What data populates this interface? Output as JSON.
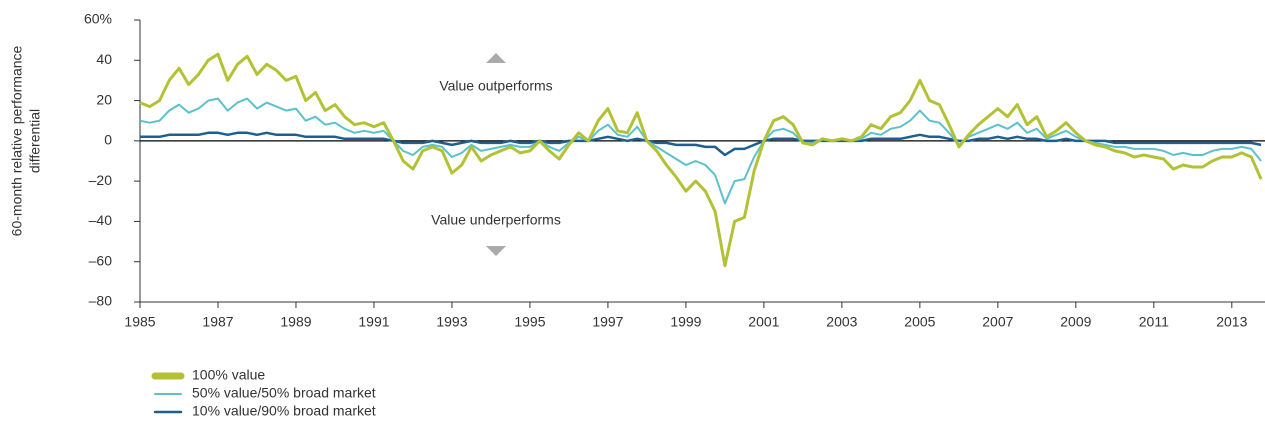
{
  "chart_data": {
    "type": "line",
    "ylabel": [
      "60-month relative performance",
      "differential"
    ],
    "annotations": [
      "Value outperforms",
      "Value underperforms"
    ],
    "xlim": [
      1985,
      2013.8
    ],
    "xticks": [
      1985,
      1987,
      1989,
      1991,
      1993,
      1995,
      1997,
      1999,
      2001,
      2003,
      2005,
      2007,
      2009,
      2011,
      2013
    ],
    "ylim": [
      -80,
      60
    ],
    "yticks": [
      {
        "value": -80,
        "label": "–80"
      },
      {
        "value": -60,
        "label": "–60"
      },
      {
        "value": -40,
        "label": "–40"
      },
      {
        "value": -20,
        "label": "–20"
      },
      0,
      20,
      40,
      {
        "value": 60,
        "label": "60%"
      }
    ],
    "zero_line": true,
    "x": [
      1985,
      1985.25,
      1985.5,
      1985.75,
      1986,
      1986.25,
      1986.5,
      1986.75,
      1987,
      1987.25,
      1987.5,
      1987.75,
      1988,
      1988.25,
      1988.5,
      1988.75,
      1989,
      1989.25,
      1989.5,
      1989.75,
      1990,
      1990.25,
      1990.5,
      1990.75,
      1991,
      1991.25,
      1991.5,
      1991.75,
      1992,
      1992.25,
      1992.5,
      1992.75,
      1993,
      1993.25,
      1993.5,
      1993.75,
      1994,
      1994.25,
      1994.5,
      1994.75,
      1995,
      1995.25,
      1995.5,
      1995.75,
      1996,
      1996.25,
      1996.5,
      1996.75,
      1997,
      1997.25,
      1997.5,
      1997.75,
      1998,
      1998.25,
      1998.5,
      1998.75,
      1999,
      1999.25,
      1999.5,
      1999.75,
      2000,
      2000.25,
      2000.5,
      2000.75,
      2001,
      2001.25,
      2001.5,
      2001.75,
      2002,
      2002.25,
      2002.5,
      2002.75,
      2003,
      2003.25,
      2003.5,
      2003.75,
      2004,
      2004.25,
      2004.5,
      2004.75,
      2005,
      2005.25,
      2005.5,
      2005.75,
      2006,
      2006.25,
      2006.5,
      2006.75,
      2007,
      2007.25,
      2007.5,
      2007.75,
      2008,
      2008.25,
      2008.5,
      2008.75,
      2009,
      2009.25,
      2009.5,
      2009.75,
      2010,
      2010.25,
      2010.5,
      2010.75,
      2011,
      2011.25,
      2011.5,
      2011.75,
      2012,
      2012.25,
      2012.5,
      2012.75,
      2013,
      2013.25,
      2013.5,
      2013.75
    ],
    "series": [
      {
        "name": "100% value",
        "color": "#b3c234",
        "width": 3,
        "legend_width": 7,
        "values": [
          19,
          17,
          20,
          30,
          36,
          28,
          33,
          40,
          43,
          30,
          38,
          42,
          33,
          38,
          35,
          30,
          32,
          20,
          24,
          15,
          18,
          12,
          8,
          9,
          7,
          9,
          0,
          -10,
          -14,
          -5,
          -3,
          -5,
          -16,
          -12,
          -3,
          -10,
          -7,
          -5,
          -3,
          -6,
          -5,
          0,
          -5,
          -9,
          -2,
          4,
          0,
          10,
          16,
          5,
          4,
          14,
          0,
          -5,
          -12,
          -18,
          -25,
          -20,
          -25,
          -35,
          -62,
          -40,
          -38,
          -15,
          0,
          10,
          12,
          8,
          -1,
          -2,
          1,
          0,
          1,
          0,
          2,
          8,
          6,
          12,
          14,
          20,
          30,
          20,
          18,
          8,
          -3,
          3,
          8,
          12,
          16,
          12,
          18,
          8,
          12,
          2,
          5,
          9,
          4,
          0,
          -2,
          -3,
          -5,
          -6,
          -8,
          -7,
          -8,
          -9,
          -14,
          -12,
          -13,
          -13,
          -10,
          -8,
          -8,
          -6,
          -8,
          -19
        ]
      },
      {
        "name": "50% value/50% broad market",
        "color": "#5bc2cb",
        "width": 2,
        "legend_width": 2,
        "values": [
          10,
          9,
          10,
          15,
          18,
          14,
          16,
          20,
          21,
          15,
          19,
          21,
          16,
          19,
          17,
          15,
          16,
          10,
          12,
          8,
          9,
          6,
          4,
          5,
          4,
          5,
          0,
          -5,
          -7,
          -3,
          -2,
          -3,
          -8,
          -6,
          -2,
          -5,
          -4,
          -3,
          -2,
          -3,
          -3,
          0,
          -3,
          -5,
          -1,
          2,
          0,
          5,
          8,
          3,
          2,
          7,
          0,
          -3,
          -6,
          -9,
          -12,
          -10,
          -12,
          -17,
          -31,
          -20,
          -19,
          -8,
          0,
          5,
          6,
          4,
          -1,
          -1,
          1,
          0,
          1,
          0,
          1,
          4,
          3,
          6,
          7,
          10,
          15,
          10,
          9,
          4,
          -2,
          2,
          4,
          6,
          8,
          6,
          9,
          4,
          6,
          1,
          3,
          5,
          2,
          0,
          -1,
          -2,
          -3,
          -3,
          -4,
          -4,
          -4,
          -5,
          -7,
          -6,
          -7,
          -7,
          -5,
          -4,
          -4,
          -3,
          -4,
          -10
        ]
      },
      {
        "name": "10% value/90% broad market",
        "color": "#1f5f8f",
        "width": 2.5,
        "legend_width": 2.5,
        "values": [
          2,
          2,
          2,
          3,
          3,
          3,
          3,
          4,
          4,
          3,
          4,
          4,
          3,
          4,
          3,
          3,
          3,
          2,
          2,
          2,
          2,
          1,
          1,
          1,
          1,
          1,
          0,
          -1,
          -1,
          -1,
          0,
          -1,
          -2,
          -1,
          0,
          -1,
          -1,
          -1,
          0,
          -1,
          -1,
          0,
          -1,
          -1,
          0,
          0,
          0,
          1,
          2,
          1,
          0,
          1,
          0,
          -1,
          -1,
          -2,
          -2,
          -2,
          -3,
          -3,
          -7,
          -4,
          -4,
          -2,
          0,
          1,
          1,
          1,
          0,
          0,
          0,
          0,
          0,
          0,
          0,
          1,
          1,
          1,
          1,
          2,
          3,
          2,
          2,
          1,
          0,
          0,
          1,
          1,
          2,
          1,
          2,
          1,
          1,
          0,
          0,
          1,
          0,
          0,
          0,
          0,
          -1,
          -1,
          -1,
          -1,
          -1,
          -1,
          -1,
          -1,
          -1,
          -1,
          -1,
          -1,
          -1,
          -1,
          -1,
          -2
        ]
      }
    ]
  }
}
